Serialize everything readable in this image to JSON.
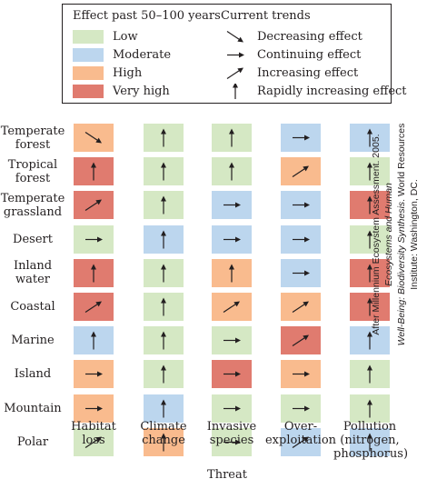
{
  "legend": {
    "effect_title": "Effect past 50–100 years",
    "trends_title": "Current trends",
    "effects": [
      {
        "key": "low",
        "label": "Low",
        "color": "#d5e8c4"
      },
      {
        "key": "moderate",
        "label": "Moderate",
        "color": "#bcd6ee"
      },
      {
        "key": "high",
        "label": "High",
        "color": "#f9bb8e"
      },
      {
        "key": "very_high",
        "label": "Very high",
        "color": "#e07b6f"
      }
    ],
    "trends": [
      {
        "key": "decreasing",
        "label": "Decreasing effect",
        "icon": "arrow-down-right-icon"
      },
      {
        "key": "continuing",
        "label": "Continuing effect",
        "icon": "arrow-right-icon"
      },
      {
        "key": "increasing",
        "label": "Increasing effect",
        "icon": "arrow-up-right-icon"
      },
      {
        "key": "rapid",
        "label": "Rapidly increasing effect",
        "icon": "arrow-up-icon"
      }
    ]
  },
  "threats": [
    "Habitat\nloss",
    "Climate\nchange",
    "Invasive\nspecies",
    "Over-\nexploitation",
    "Pollution\n(nitrogen,\nphosphorus)"
  ],
  "axis_title": "Threat",
  "biomes": [
    {
      "name": "Temperate\nforest",
      "cells": [
        [
          "high",
          "decreasing"
        ],
        [
          "low",
          "rapid"
        ],
        [
          "low",
          "rapid"
        ],
        [
          "moderate",
          "continuing"
        ],
        [
          "moderate",
          "rapid"
        ]
      ]
    },
    {
      "name": "Tropical\nforest",
      "cells": [
        [
          "very_high",
          "rapid"
        ],
        [
          "low",
          "rapid"
        ],
        [
          "low",
          "rapid"
        ],
        [
          "high",
          "increasing"
        ],
        [
          "low",
          "rapid"
        ]
      ]
    },
    {
      "name": "Temperate\ngrassland",
      "cells": [
        [
          "very_high",
          "increasing"
        ],
        [
          "low",
          "rapid"
        ],
        [
          "moderate",
          "continuing"
        ],
        [
          "moderate",
          "continuing"
        ],
        [
          "very_high",
          "rapid"
        ]
      ]
    },
    {
      "name": "Desert",
      "cells": [
        [
          "low",
          "continuing"
        ],
        [
          "moderate",
          "rapid"
        ],
        [
          "moderate",
          "continuing"
        ],
        [
          "moderate",
          "continuing"
        ],
        [
          "low",
          "rapid"
        ]
      ]
    },
    {
      "name": "Inland\nwater",
      "cells": [
        [
          "very_high",
          "rapid"
        ],
        [
          "low",
          "rapid"
        ],
        [
          "high",
          "rapid"
        ],
        [
          "moderate",
          "continuing"
        ],
        [
          "very_high",
          "rapid"
        ]
      ]
    },
    {
      "name": "Coastal",
      "cells": [
        [
          "very_high",
          "increasing"
        ],
        [
          "low",
          "rapid"
        ],
        [
          "high",
          "increasing"
        ],
        [
          "high",
          "increasing"
        ],
        [
          "very_high",
          "rapid"
        ]
      ]
    },
    {
      "name": "Marine",
      "cells": [
        [
          "moderate",
          "rapid"
        ],
        [
          "low",
          "rapid"
        ],
        [
          "low",
          "continuing"
        ],
        [
          "very_high",
          "increasing"
        ],
        [
          "moderate",
          "rapid"
        ]
      ]
    },
    {
      "name": "Island",
      "cells": [
        [
          "high",
          "continuing"
        ],
        [
          "low",
          "rapid"
        ],
        [
          "very_high",
          "continuing"
        ],
        [
          "high",
          "continuing"
        ],
        [
          "low",
          "rapid"
        ]
      ]
    },
    {
      "name": "Mountain",
      "cells": [
        [
          "high",
          "continuing"
        ],
        [
          "moderate",
          "rapid"
        ],
        [
          "low",
          "continuing"
        ],
        [
          "low",
          "continuing"
        ],
        [
          "low",
          "rapid"
        ]
      ]
    },
    {
      "name": "Polar",
      "cells": [
        [
          "low",
          "increasing"
        ],
        [
          "high",
          "rapid"
        ],
        [
          "low",
          "continuing"
        ],
        [
          "moderate",
          "increasing"
        ],
        [
          "moderate",
          "rapid"
        ]
      ]
    }
  ],
  "source_note": {
    "line1_plain": "After Millennium Ecosystem Assessment. 2005. ",
    "line1_italic": "Ecosystems and Human",
    "line2_italic": "Well-Being: Biodiversity Synthesis",
    "line2_plain": ". World Resources Institute: Washington, DC."
  }
}
